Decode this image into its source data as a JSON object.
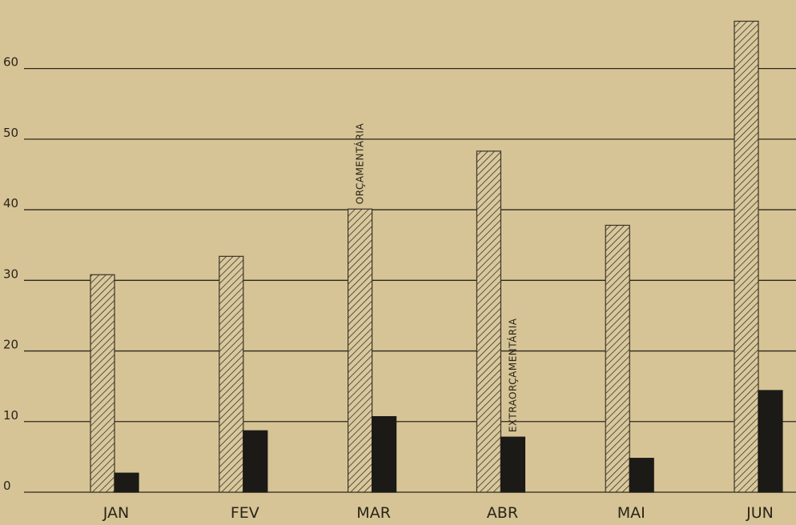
{
  "chart_data": {
    "type": "bar",
    "categories": [
      "JAN",
      "FEV",
      "MAR",
      "ABR",
      "MAI",
      "JUN"
    ],
    "series": [
      {
        "name": "ORÇAMENTÁRIA",
        "color": "#3a3226",
        "pattern": "hatch",
        "values": [
          30.8,
          33.4,
          40.1,
          48.3,
          37.8,
          66.7
        ]
      },
      {
        "name": "EXTRAORÇAMENTÁRIA",
        "color": "#1c1a17",
        "values": [
          2.7,
          8.7,
          10.7,
          7.8,
          4.8,
          14.4
        ]
      }
    ],
    "ylim": [
      0,
      70
    ],
    "yticks": [
      0,
      10,
      20,
      30,
      40,
      50,
      60
    ],
    "grid": true
  }
}
